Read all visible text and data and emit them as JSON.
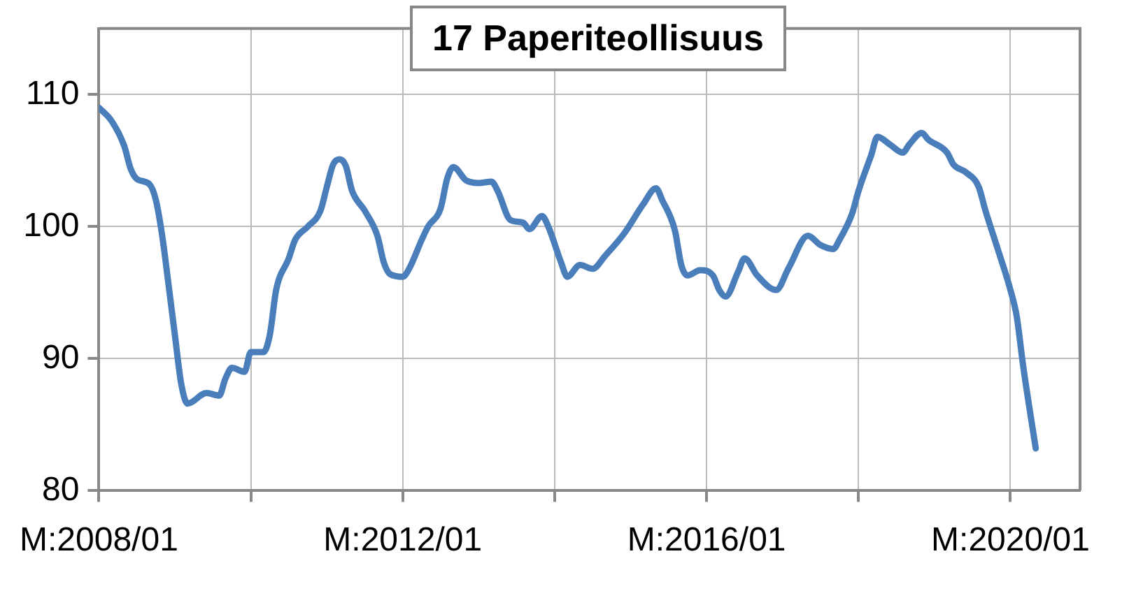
{
  "chart_data": {
    "type": "line",
    "title": "17 Paperiteollisuus",
    "x": [
      "2008-01",
      "2008-03",
      "2008-05",
      "2008-06",
      "2008-07",
      "2008-09",
      "2008-10",
      "2008-11",
      "2008-12",
      "2009-01",
      "2009-02",
      "2009-03",
      "2009-06",
      "2009-08",
      "2009-09",
      "2009-10",
      "2009-12",
      "2010-01",
      "2010-03",
      "2010-04",
      "2010-05",
      "2010-07",
      "2010-08",
      "2010-10",
      "2010-12",
      "2011-01",
      "2011-02",
      "2011-03",
      "2011-04",
      "2011-05",
      "2011-07",
      "2011-09",
      "2011-10",
      "2011-11",
      "2012-01",
      "2012-02",
      "2012-04",
      "2012-05",
      "2012-07",
      "2012-08",
      "2012-09",
      "2012-11",
      "2013-01",
      "2013-03",
      "2013-04",
      "2013-06",
      "2013-08",
      "2013-09",
      "2013-11",
      "2013-12",
      "2014-02",
      "2014-03",
      "2014-05",
      "2014-07",
      "2014-09",
      "2014-12",
      "2015-03",
      "2015-05",
      "2015-06",
      "2015-08",
      "2015-09",
      "2015-10",
      "2015-12",
      "2016-02",
      "2016-03",
      "2016-04",
      "2016-06",
      "2016-07",
      "2016-09",
      "2016-12",
      "2017-02",
      "2017-05",
      "2017-07",
      "2017-09",
      "2017-10",
      "2017-12",
      "2018-01",
      "2018-03",
      "2018-04",
      "2018-06",
      "2018-08",
      "2018-09",
      "2018-11",
      "2018-12",
      "2019-03",
      "2019-04",
      "2019-06",
      "2019-08",
      "2019-09",
      "2019-11",
      "2020-01",
      "2020-02",
      "2020-03",
      "2020-05"
    ],
    "series": [
      {
        "color": "#4a7ebb",
        "values": [
          109.0,
          108.0,
          106.1,
          104.4,
          103.6,
          103.2,
          102.0,
          99.3,
          95.6,
          91.8,
          88.1,
          86.6,
          87.4,
          87.2,
          88.5,
          89.3,
          89.0,
          90.5,
          90.5,
          91.8,
          95.2,
          97.6,
          99.0,
          100.0,
          101.2,
          103.0,
          104.7,
          105.1,
          104.6,
          102.7,
          101.2,
          99.3,
          97.3,
          96.4,
          96.2,
          96.8,
          99.0,
          100.0,
          101.4,
          103.6,
          104.5,
          103.5,
          103.3,
          103.4,
          102.7,
          100.5,
          100.3,
          99.8,
          100.8,
          100.0,
          97.3,
          96.2,
          97.1,
          96.8,
          97.8,
          99.5,
          101.7,
          102.9,
          102.0,
          99.7,
          97.1,
          96.3,
          96.7,
          96.3,
          95.2,
          94.7,
          96.6,
          97.6,
          96.3,
          95.2,
          96.9,
          99.3,
          98.6,
          98.3,
          99.0,
          101.0,
          102.7,
          105.4,
          106.8,
          106.2,
          105.6,
          106.2,
          107.1,
          106.6,
          105.6,
          104.7,
          104.1,
          103.0,
          101.3,
          98.3,
          95.2,
          93.2,
          89.5,
          83.2
        ]
      }
    ],
    "xlim": [
      "2008-01",
      "2020-12"
    ],
    "xticks": [
      {
        "value": "2008-01",
        "label": "M:2008/01"
      },
      {
        "value": "2010-01",
        "label": null
      },
      {
        "value": "2012-01",
        "label": "M:2012/01"
      },
      {
        "value": "2014-01",
        "label": null
      },
      {
        "value": "2016-01",
        "label": "M:2016/01"
      },
      {
        "value": "2018-01",
        "label": null
      },
      {
        "value": "2020-01",
        "label": "M:2020/01"
      }
    ],
    "ylim": [
      80,
      115
    ],
    "yticks": [
      80,
      90,
      100,
      110
    ],
    "grid": true
  }
}
